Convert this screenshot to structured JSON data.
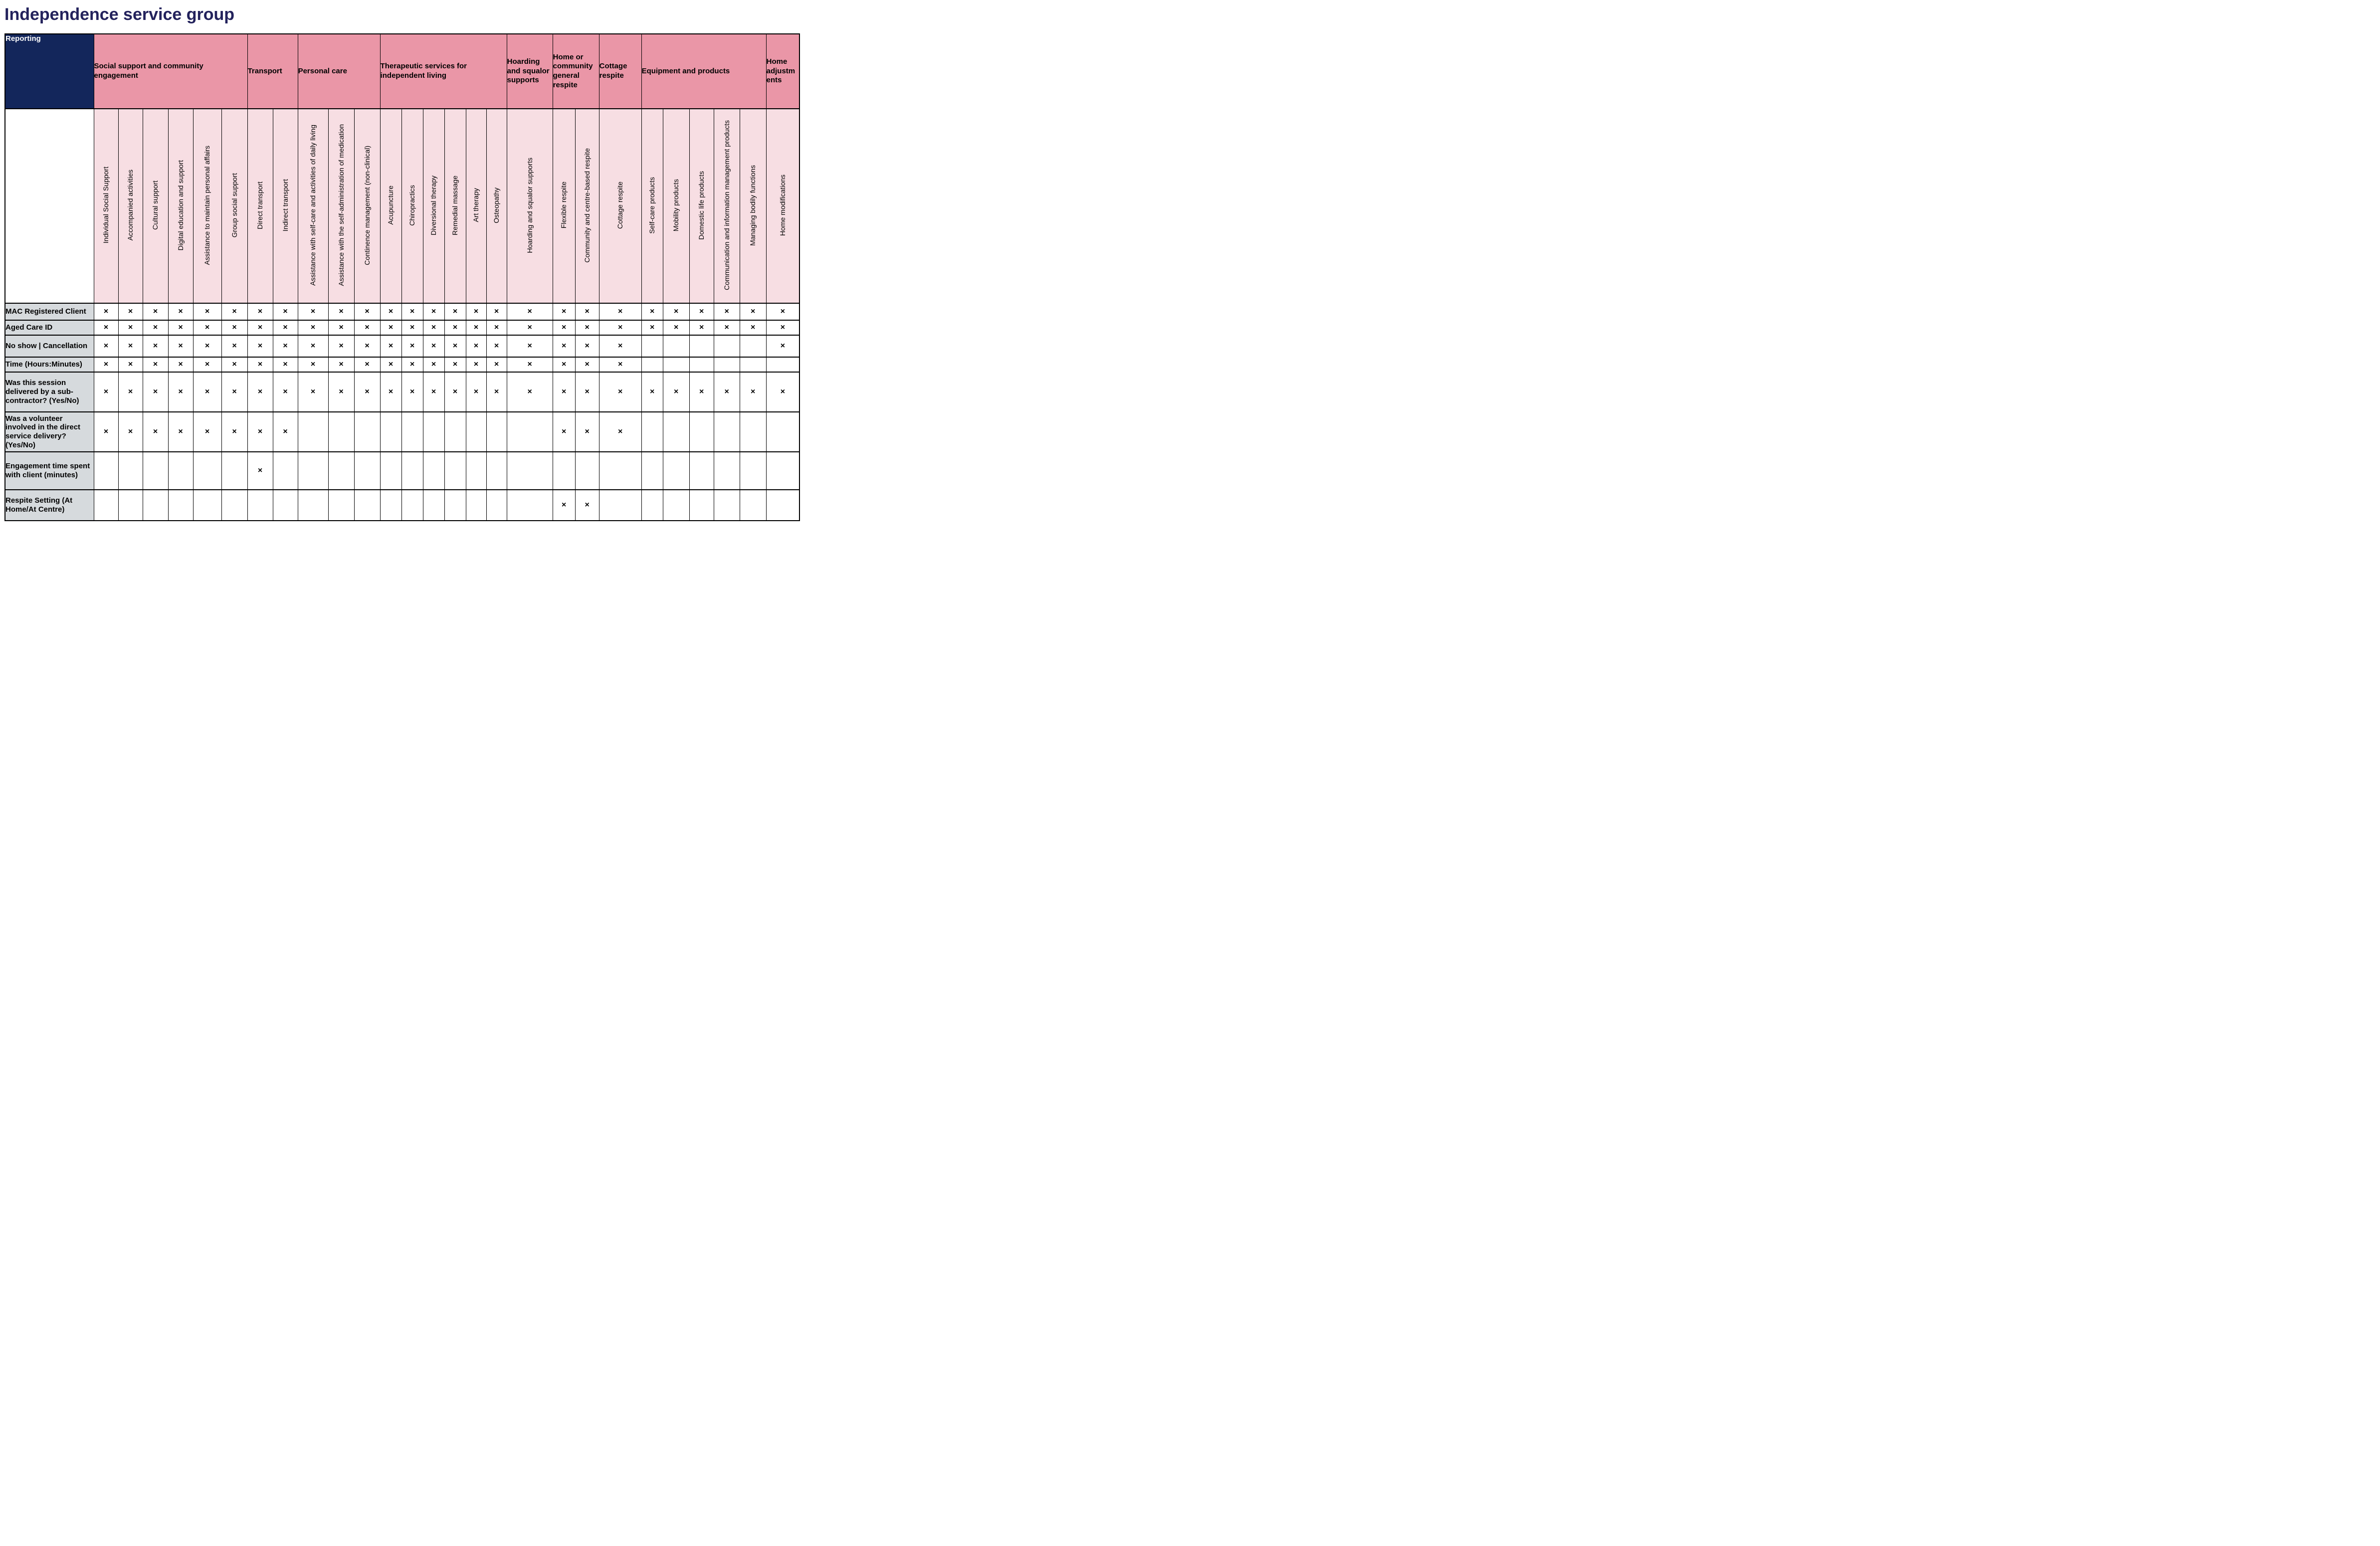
{
  "title": "Independence service group",
  "table": {
    "corner_label": "Reporting",
    "mark": "×",
    "groups": [
      {
        "label": "Social support and community engagement",
        "span": 6
      },
      {
        "label": "Transport",
        "span": 2
      },
      {
        "label": "Personal care",
        "span": 3
      },
      {
        "label": "Therapeutic services for independent living",
        "span": 6
      },
      {
        "label": "Hoarding and squalor supports",
        "span": 1
      },
      {
        "label": "Home or community general respite",
        "span": 2
      },
      {
        "label": "Cottage respite",
        "span": 1
      },
      {
        "label": "Equipment and products",
        "span": 5
      },
      {
        "label": "Home adjustments",
        "span": 1
      }
    ],
    "columns": [
      "Individual Social Support",
      "Accompanied activities",
      "Cultural support",
      "Digital education and support",
      "Assistance to maintain personal affairs",
      "Group social support",
      "Direct transport",
      "Indirect transport",
      "Assistance with self-care and activities of daily living",
      "Assistance with the self-administration of medication",
      "Continence management (non-clinical)",
      "Acupuncture",
      "Chiropractics",
      "Diversional therapy",
      "Remedial massage",
      "Art therapy",
      "Osteopathy",
      "Hoarding and squalor supports",
      "Flexible respite",
      "Community and centre-based respite",
      "Cottage respite",
      "Self-care products",
      "Mobility products",
      "Domestic life products",
      "Communication and information management products",
      "Managing bodily functions",
      "Home modifications"
    ],
    "rows": [
      {
        "label": "MAC Registered Client",
        "marks": [
          1,
          1,
          1,
          1,
          1,
          1,
          1,
          1,
          1,
          1,
          1,
          1,
          1,
          1,
          1,
          1,
          1,
          1,
          1,
          1,
          1,
          1,
          1,
          1,
          1,
          1,
          1
        ]
      },
      {
        "label": "Aged Care ID",
        "marks": [
          1,
          1,
          1,
          1,
          1,
          1,
          1,
          1,
          1,
          1,
          1,
          1,
          1,
          1,
          1,
          1,
          1,
          1,
          1,
          1,
          1,
          1,
          1,
          1,
          1,
          1,
          1
        ]
      },
      {
        "label": "No show | Cancellation",
        "marks": [
          1,
          1,
          1,
          1,
          1,
          1,
          1,
          1,
          1,
          1,
          1,
          1,
          1,
          1,
          1,
          1,
          1,
          1,
          1,
          1,
          1,
          0,
          0,
          0,
          0,
          0,
          1
        ]
      },
      {
        "label": "Time (Hours:Minutes)",
        "marks": [
          1,
          1,
          1,
          1,
          1,
          1,
          1,
          1,
          1,
          1,
          1,
          1,
          1,
          1,
          1,
          1,
          1,
          1,
          1,
          1,
          1,
          0,
          0,
          0,
          0,
          0,
          0
        ]
      },
      {
        "label": "Was this session delivered by a sub-contractor? (Yes/No)",
        "marks": [
          1,
          1,
          1,
          1,
          1,
          1,
          1,
          1,
          1,
          1,
          1,
          1,
          1,
          1,
          1,
          1,
          1,
          1,
          1,
          1,
          1,
          1,
          1,
          1,
          1,
          1,
          1
        ]
      },
      {
        "label": "Was a volunteer involved in the direct service delivery? (Yes/No)",
        "marks": [
          1,
          1,
          1,
          1,
          1,
          1,
          1,
          1,
          0,
          0,
          0,
          0,
          0,
          0,
          0,
          0,
          0,
          0,
          1,
          1,
          1,
          0,
          0,
          0,
          0,
          0,
          0
        ]
      },
      {
        "label": "Engagement time spent with client (minutes)",
        "marks": [
          0,
          0,
          0,
          0,
          0,
          0,
          1,
          0,
          0,
          0,
          0,
          0,
          0,
          0,
          0,
          0,
          0,
          0,
          0,
          0,
          0,
          0,
          0,
          0,
          0,
          0,
          0
        ]
      },
      {
        "label": "Respite Setting (At Home/At Centre)",
        "marks": [
          0,
          0,
          0,
          0,
          0,
          0,
          0,
          0,
          0,
          0,
          0,
          0,
          0,
          0,
          0,
          0,
          0,
          0,
          1,
          1,
          0,
          0,
          0,
          0,
          0,
          0,
          0
        ]
      }
    ]
  },
  "colors": {
    "header_navy": "#13265B",
    "group_pink": "#EA96A7",
    "column_pink": "#F7DEE3",
    "row_label_gray": "#D6DADD",
    "title_navy": "#23225C",
    "grid_black": "#000000"
  }
}
